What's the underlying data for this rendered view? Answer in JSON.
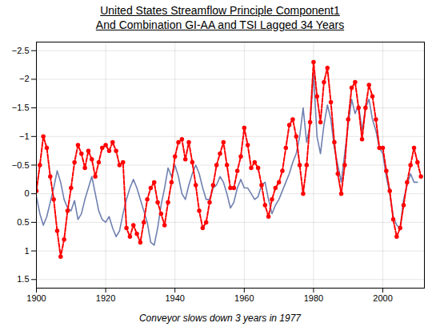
{
  "chart_data": {
    "type": "line",
    "title": "United States Streamflow  Principle Component1\nAnd Combination GI-AA and TSI Lagged 34 Years",
    "subtitle": "Conveyor slows down 3 years in 1977",
    "xlim": [
      1900,
      2012
    ],
    "ylim": [
      1.65,
      -2.65
    ],
    "xticks": [
      1900,
      1920,
      1940,
      1960,
      1980,
      2000
    ],
    "yticks": [
      {
        "value": -2.5,
        "label": "−2.5"
      },
      {
        "value": -2.0,
        "label": "−2"
      },
      {
        "value": -1.5,
        "label": "−1.5"
      },
      {
        "value": -1.0,
        "label": "−1"
      },
      {
        "value": -0.5,
        "label": "−0.5"
      },
      0,
      0.5,
      1,
      1.5
    ],
    "grid": true,
    "series": [
      {
        "color": "#7080b0",
        "line_style": "solid",
        "x": [
          1900,
          1901,
          1902,
          1903,
          1904,
          1905,
          1906,
          1907,
          1908,
          1909,
          1910,
          1911,
          1912,
          1913,
          1914,
          1915,
          1916,
          1917,
          1918,
          1919,
          1920,
          1921,
          1922,
          1923,
          1924,
          1925,
          1926,
          1927,
          1928,
          1929,
          1930,
          1931,
          1932,
          1933,
          1934,
          1935,
          1936,
          1937,
          1938,
          1939,
          1940,
          1941,
          1942,
          1943,
          1944,
          1945,
          1946,
          1947,
          1948,
          1949,
          1950,
          1951,
          1952,
          1953,
          1954,
          1955,
          1956,
          1957,
          1958,
          1959,
          1960,
          1961,
          1962,
          1963,
          1964,
          1965,
          1966,
          1967,
          1968,
          1969,
          1970,
          1971,
          1972,
          1973,
          1974,
          1975,
          1976,
          1977,
          1978,
          1979,
          1980,
          1981,
          1982,
          1983,
          1984,
          1985,
          1986,
          1987,
          1988,
          1989,
          1990,
          1991,
          1992,
          1993,
          1994,
          1995,
          1996,
          1997,
          1998,
          1999,
          2000,
          2001,
          2002,
          2003,
          2004,
          2005,
          2006,
          2007,
          2008,
          2009,
          2010
        ],
        "values": [
          0.05,
          0.35,
          0.55,
          0.4,
          0.15,
          -0.1,
          -0.4,
          -0.2,
          0.1,
          0.25,
          0.3,
          0.12,
          0.45,
          0.35,
          0.1,
          -0.1,
          -0.3,
          0.0,
          0.3,
          0.45,
          0.5,
          0.4,
          0.6,
          0.75,
          0.65,
          0.35,
          0.1,
          -0.1,
          -0.25,
          -0.1,
          0.1,
          0.3,
          0.5,
          0.85,
          0.9,
          0.6,
          0.2,
          -0.1,
          -0.45,
          -0.3,
          -0.5,
          -0.3,
          0.0,
          0.1,
          -0.15,
          -0.35,
          -0.5,
          -0.35,
          -0.1,
          0.1,
          0.1,
          -0.1,
          -0.15,
          -0.3,
          -0.2,
          0.0,
          0.25,
          0.15,
          -0.1,
          -0.25,
          -0.1,
          -0.1,
          0.0,
          0.1,
          0.05,
          -0.15,
          -0.2,
          0.1,
          0.35,
          0.2,
          0.1,
          -0.05,
          -0.2,
          -0.35,
          -0.55,
          -0.7,
          -1.0,
          -1.5,
          -0.9,
          -1.2,
          -2.1,
          -1.0,
          -0.7,
          -1.2,
          -1.55,
          -1.3,
          -0.8,
          -0.5,
          -0.2,
          -0.7,
          -1.2,
          -1.65,
          -1.4,
          -1.55,
          -1.1,
          -1.5,
          -1.65,
          -1.3,
          -1.1,
          -0.8,
          -0.7,
          -0.3,
          0.0,
          0.4,
          0.55,
          0.6,
          0.1,
          -0.15,
          -0.35,
          -0.2,
          -0.2
        ]
      },
      {
        "color": "#ff0000",
        "line_style": "dashed",
        "marker": "circle",
        "x": [
          1900,
          1901,
          1902,
          1903,
          1904,
          1905,
          1906,
          1907,
          1908,
          1909,
          1910,
          1911,
          1912,
          1913,
          1914,
          1915,
          1916,
          1917,
          1918,
          1919,
          1920,
          1921,
          1922,
          1923,
          1924,
          1925,
          1926,
          1927,
          1928,
          1929,
          1930,
          1931,
          1932,
          1933,
          1934,
          1935,
          1936,
          1937,
          1938,
          1939,
          1940,
          1941,
          1942,
          1943,
          1944,
          1945,
          1946,
          1947,
          1948,
          1949,
          1950,
          1951,
          1952,
          1953,
          1954,
          1955,
          1956,
          1957,
          1958,
          1959,
          1960,
          1961,
          1962,
          1963,
          1964,
          1965,
          1966,
          1967,
          1968,
          1969,
          1970,
          1971,
          1972,
          1973,
          1974,
          1975,
          1976,
          1977,
          1978,
          1979,
          1980,
          1981,
          1982,
          1983,
          1984,
          1985,
          1986,
          1987,
          1988,
          1989,
          1990,
          1991,
          1992,
          1993,
          1994,
          1995,
          1996,
          1997,
          1998,
          1999,
          2000,
          2001,
          2002,
          2003,
          2004,
          2005,
          2006,
          2007,
          2008,
          2009,
          2010,
          2011
        ],
        "values": [
          -0.05,
          -0.5,
          -1.0,
          -0.8,
          -0.3,
          0.1,
          0.65,
          1.1,
          0.8,
          0.3,
          -0.1,
          -0.55,
          -0.85,
          -0.7,
          -0.45,
          -0.75,
          -0.6,
          -0.3,
          -0.55,
          -0.8,
          -0.85,
          -0.75,
          -0.9,
          -0.75,
          -0.5,
          -0.55,
          0.6,
          0.75,
          0.55,
          0.7,
          0.85,
          0.5,
          0.1,
          -0.1,
          -0.2,
          0.15,
          0.35,
          0.55,
          0.15,
          -0.2,
          -0.65,
          -0.9,
          -0.95,
          -0.6,
          -0.9,
          -0.55,
          -0.15,
          0.3,
          0.6,
          0.5,
          0.15,
          -0.15,
          -0.5,
          -0.7,
          -0.9,
          -0.5,
          -0.1,
          -0.1,
          -0.4,
          -0.65,
          -1.15,
          -0.85,
          -0.45,
          -0.55,
          -0.45,
          -0.15,
          0.2,
          0.4,
          0.1,
          -0.1,
          -0.2,
          -0.4,
          -0.8,
          -1.2,
          -1.3,
          -1.0,
          -0.5,
          0.0,
          -0.5,
          -1.25,
          -2.3,
          -1.7,
          -1.25,
          -1.95,
          -2.2,
          -1.6,
          -0.9,
          -0.35,
          0.0,
          -0.5,
          -1.3,
          -1.85,
          -1.95,
          -1.5,
          -0.95,
          -1.5,
          -1.9,
          -1.7,
          -1.3,
          -0.8,
          -0.8,
          -0.4,
          -0.05,
          0.45,
          0.75,
          0.6,
          0.2,
          -0.2,
          -0.5,
          -0.8,
          -0.55,
          -0.3
        ]
      }
    ]
  }
}
